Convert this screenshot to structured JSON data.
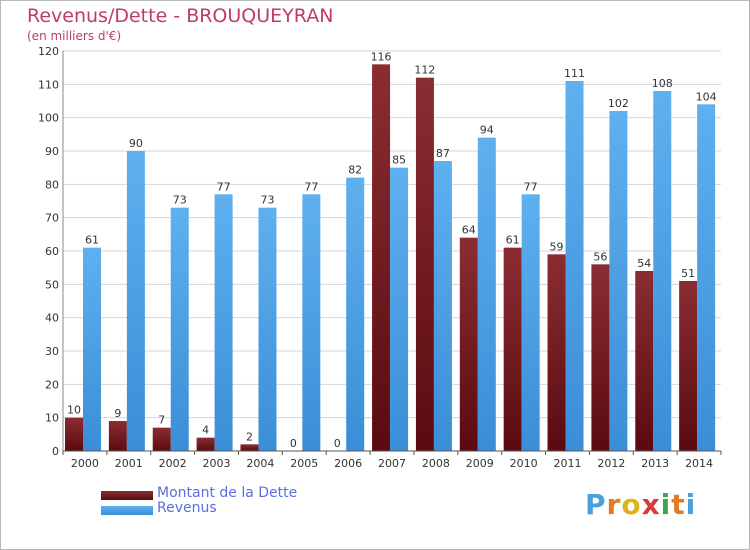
{
  "chart_data": {
    "type": "bar",
    "title": "Revenus/Dette - BROUQUEYRAN",
    "subtitle": "(en milliers d'€)",
    "categories": [
      "2000",
      "2001",
      "2002",
      "2003",
      "2004",
      "2005",
      "2006",
      "2007",
      "2008",
      "2009",
      "2010",
      "2011",
      "2012",
      "2013",
      "2014"
    ],
    "series": [
      {
        "name": "Montant de la Dette",
        "color": "#7a1f24",
        "values": [
          10,
          9,
          7,
          4,
          2,
          0,
          0,
          116,
          112,
          64,
          61,
          59,
          56,
          54,
          51
        ]
      },
      {
        "name": "Revenus",
        "color": "#4fa3e6",
        "values": [
          61,
          90,
          73,
          77,
          73,
          77,
          82,
          85,
          87,
          94,
          77,
          111,
          102,
          108,
          104
        ]
      }
    ],
    "ylim": [
      0,
      120
    ],
    "yticks": [
      0,
      10,
      20,
      30,
      40,
      50,
      60,
      70,
      80,
      90,
      100,
      110,
      120
    ],
    "grid": true,
    "legend_position": "bottom-left"
  },
  "logo": {
    "letters": [
      {
        "ch": "P",
        "color": "#4aa0dc"
      },
      {
        "ch": "r",
        "color": "#e07a24"
      },
      {
        "ch": "o",
        "color": "#e0b21c"
      },
      {
        "ch": "x",
        "color": "#d93a3a"
      },
      {
        "ch": "i",
        "color": "#3aa84a"
      },
      {
        "ch": "t",
        "color": "#e07a24"
      },
      {
        "ch": "i",
        "color": "#4aa0dc"
      }
    ]
  }
}
